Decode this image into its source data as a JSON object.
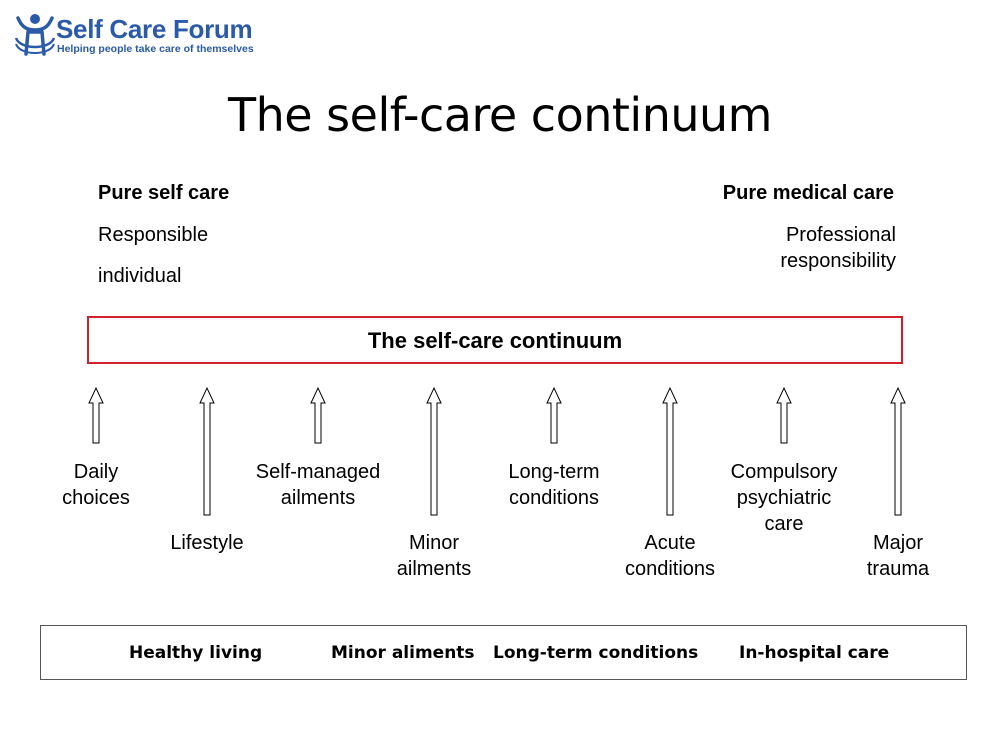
{
  "logo": {
    "title": "Self Care Forum",
    "tagline": "Helping people take care of themselves",
    "icon": "person-arms-up-icon",
    "color": "#2a5aa8"
  },
  "slide": {
    "title": "The self-care continuum"
  },
  "left": {
    "heading": "Pure self care",
    "line1": "Responsible",
    "line2": "individual"
  },
  "right": {
    "heading": "Pure medical care",
    "description": "Professional responsibility"
  },
  "continuum": {
    "label": "The self-care continuum",
    "border_color": "#d0202a"
  },
  "categories": [
    {
      "label": "Daily\nchoices"
    },
    {
      "label": "Lifestyle"
    },
    {
      "label": "Self-managed\nailments"
    },
    {
      "label": "Minor\nailments"
    },
    {
      "label": "Long-term\nconditions"
    },
    {
      "label": "Acute\nconditions"
    },
    {
      "label": "Compulsory\npsychiatric\ncare"
    },
    {
      "label": "Major\ntrauma"
    }
  ],
  "bands": [
    "Healthy living",
    "Minor aliments",
    "Long-term conditions",
    "In-hospital care"
  ]
}
